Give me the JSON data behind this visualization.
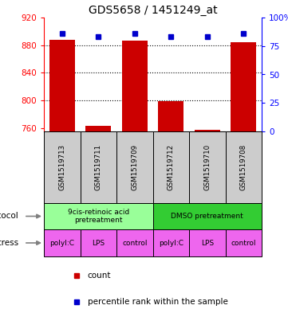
{
  "title": "GDS5658 / 1451249_at",
  "samples": [
    "GSM1519713",
    "GSM1519711",
    "GSM1519709",
    "GSM1519712",
    "GSM1519710",
    "GSM1519708"
  ],
  "counts": [
    888,
    763,
    886,
    799,
    757,
    884
  ],
  "percentiles": [
    86,
    83,
    86,
    83,
    83,
    86
  ],
  "ylim_left": [
    755,
    920
  ],
  "ylim_right": [
    0,
    100
  ],
  "yticks_left": [
    760,
    800,
    840,
    880,
    920
  ],
  "yticks_right": [
    0,
    25,
    50,
    75,
    100
  ],
  "ytick_labels_right": [
    "0",
    "25",
    "50",
    "75",
    "100%"
  ],
  "bar_color": "#cc0000",
  "dot_color": "#0000cc",
  "protocol_labels": [
    "9cis-retinoic acid\npretreatment",
    "DMSO pretreatment"
  ],
  "protocol_colors": [
    "#99ff99",
    "#33cc33"
  ],
  "stress_labels": [
    "polyI:C",
    "LPS",
    "control",
    "polyI:C",
    "LPS",
    "control"
  ],
  "stress_color": "#ee66ee",
  "sample_bg_color": "#cccccc",
  "legend_count_color": "#cc0000",
  "legend_pct_color": "#0000cc",
  "bar_width": 0.7,
  "grid_yticks": [
    880,
    840,
    800
  ]
}
